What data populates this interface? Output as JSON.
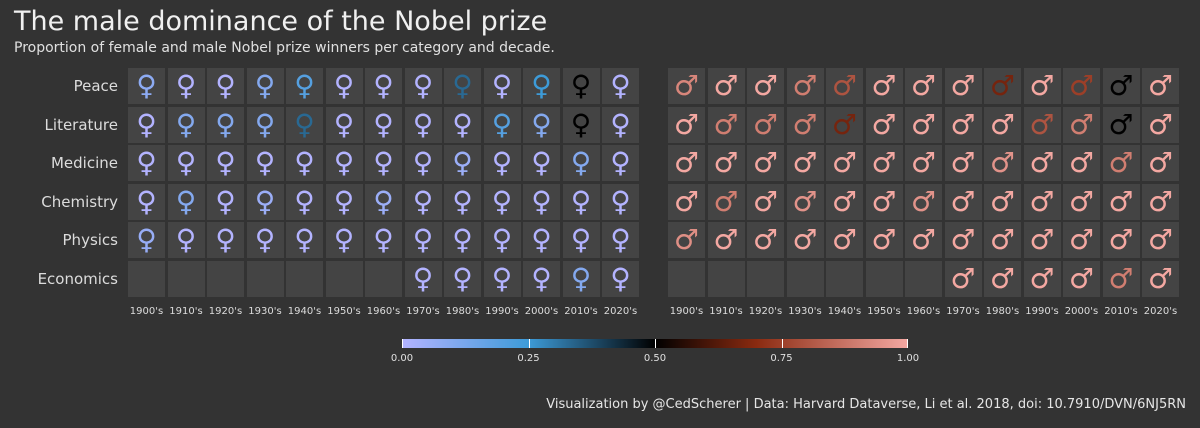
{
  "title": "The male dominance of the Nobel prize",
  "subtitle": "Proportion of female and male Nobel prize winners per category and decade.",
  "caption": "Visualization by @CedScherer  |  Data: Harvard Dataverse, Li et al. 2018, doi: 10.7910/DVN/6NJ5RN",
  "colors": {
    "background": "#333333",
    "tile": "#444444",
    "female_low": "#b3b3ff",
    "mid": "#000000",
    "male_high": "#f4a8a2"
  },
  "chart_data": {
    "type": "heatmap",
    "categories": [
      "Peace",
      "Literature",
      "Medicine",
      "Chemistry",
      "Physics",
      "Economics"
    ],
    "decades": [
      "1900's",
      "1910's",
      "1920's",
      "1930's",
      "1940's",
      "1950's",
      "1960's",
      "1970's",
      "1980's",
      "1990's",
      "2000's",
      "2010's",
      "2020's"
    ],
    "color_scale": {
      "min": 0,
      "max": 1,
      "ticks": [
        "0.00",
        "0.25",
        "0.50",
        "0.75",
        "1.00"
      ]
    },
    "female_symbol": "♀",
    "male_symbol": "♂",
    "panels": [
      {
        "symbol": "female",
        "values": [
          [
            0.08,
            0.0,
            0.0,
            0.1,
            0.2,
            0.0,
            0.0,
            0.0,
            0.33,
            0.0,
            0.25,
            0.5,
            0.0
          ],
          [
            0.0,
            0.1,
            0.1,
            0.1,
            0.33,
            0.0,
            0.0,
            0.0,
            0.0,
            0.2,
            0.1,
            0.5,
            0.0
          ],
          [
            0.0,
            0.0,
            0.0,
            0.0,
            0.0,
            0.0,
            0.0,
            0.0,
            0.05,
            0.0,
            0.0,
            0.1,
            0.0
          ],
          [
            0.0,
            0.1,
            0.0,
            0.05,
            0.0,
            0.0,
            0.05,
            0.0,
            0.0,
            0.0,
            0.0,
            0.0,
            0.0
          ],
          [
            0.06,
            0.0,
            0.0,
            0.0,
            0.0,
            0.0,
            0.0,
            0.0,
            0.0,
            0.0,
            0.0,
            0.0,
            0.0
          ],
          [
            null,
            null,
            null,
            null,
            null,
            null,
            null,
            0.0,
            0.0,
            0.0,
            0.0,
            0.1,
            0.0
          ]
        ]
      },
      {
        "symbol": "male",
        "values": [
          [
            0.92,
            1.0,
            1.0,
            0.9,
            0.8,
            1.0,
            1.0,
            1.0,
            0.67,
            1.0,
            0.75,
            0.5,
            1.0
          ],
          [
            1.0,
            0.9,
            0.9,
            0.9,
            0.67,
            1.0,
            1.0,
            1.0,
            1.0,
            0.8,
            0.9,
            0.5,
            1.0
          ],
          [
            1.0,
            1.0,
            1.0,
            1.0,
            1.0,
            1.0,
            1.0,
            1.0,
            0.95,
            1.0,
            1.0,
            0.9,
            1.0
          ],
          [
            1.0,
            0.9,
            1.0,
            0.95,
            1.0,
            1.0,
            0.95,
            1.0,
            1.0,
            1.0,
            1.0,
            1.0,
            1.0
          ],
          [
            0.94,
            1.0,
            1.0,
            1.0,
            1.0,
            1.0,
            1.0,
            1.0,
            1.0,
            1.0,
            1.0,
            1.0,
            1.0
          ],
          [
            null,
            null,
            null,
            null,
            null,
            null,
            null,
            1.0,
            1.0,
            1.0,
            1.0,
            0.9,
            1.0
          ]
        ]
      }
    ]
  }
}
